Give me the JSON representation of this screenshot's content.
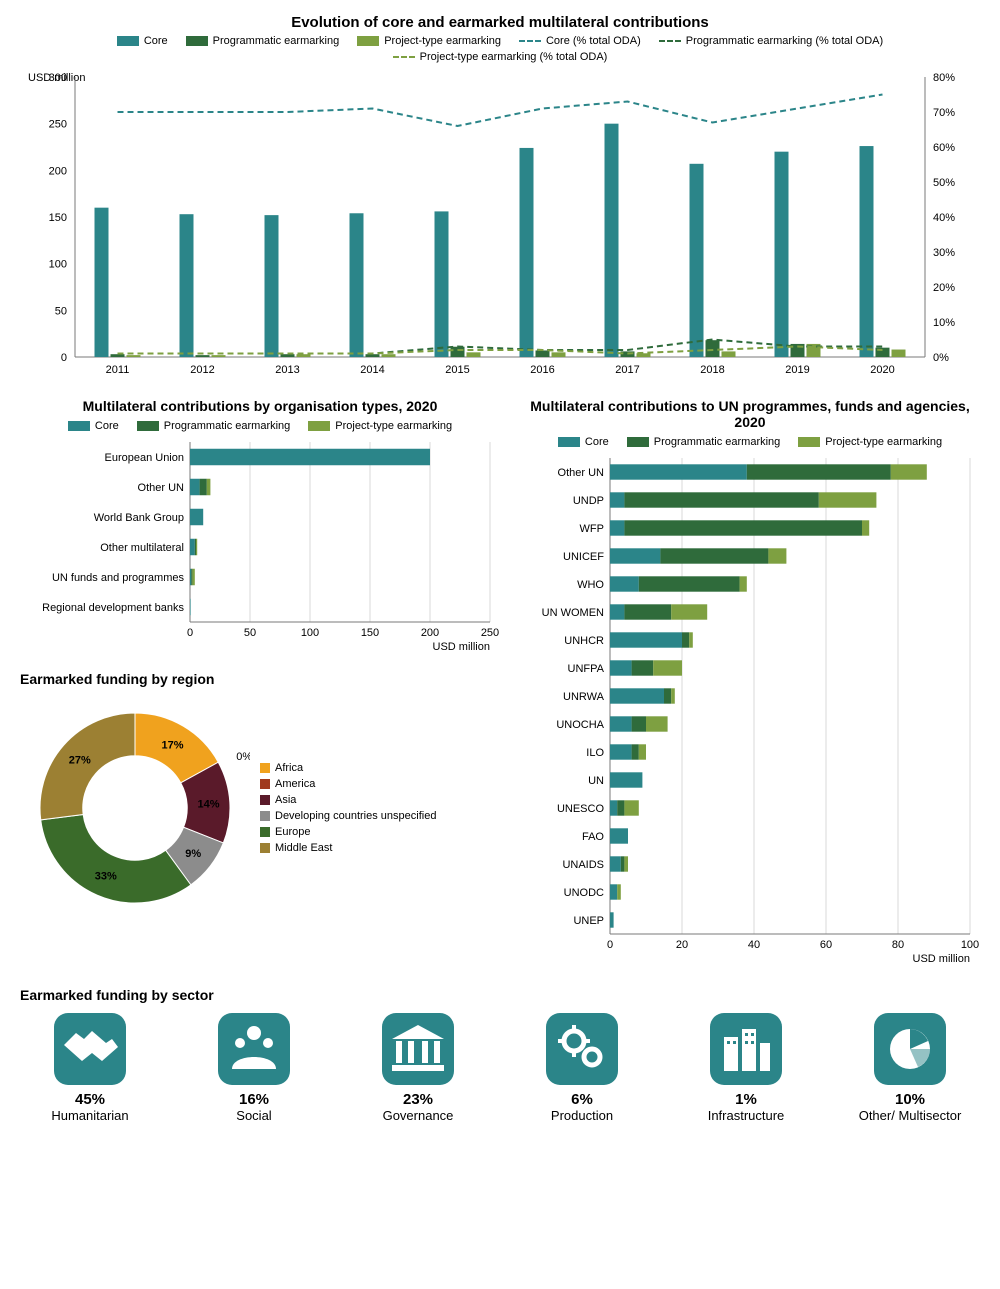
{
  "colors": {
    "core": "#2b8589",
    "prog": "#2f6b3b",
    "proj": "#7ea041",
    "core_line": "#2b8589",
    "prog_line": "#2f6b3b",
    "proj_line": "#7ea041",
    "grid": "#bfbfbf",
    "axis": "#7a7a7a",
    "text": "#000000",
    "sector_bg": "#2b8589",
    "sector_fg": "#ffffff"
  },
  "chart1": {
    "title": "Evolution of core and earmarked multilateral contributions",
    "y1_label": "USD million",
    "y1_max": 300,
    "y1_step": 50,
    "y2_max": 80,
    "y2_step": 10,
    "y2_suffix": "%",
    "years": [
      "2011",
      "2012",
      "2013",
      "2014",
      "2015",
      "2016",
      "2017",
      "2018",
      "2019",
      "2020"
    ],
    "legend": [
      {
        "label": "Core",
        "type": "bar",
        "color": "#2b8589"
      },
      {
        "label": "Programmatic earmarking",
        "type": "bar",
        "color": "#2f6b3b"
      },
      {
        "label": "Project-type earmarking",
        "type": "bar",
        "color": "#7ea041"
      },
      {
        "label": "Core (% total ODA)",
        "type": "line",
        "color": "#2b8589"
      },
      {
        "label": "Programmatic earmarking (% total ODA)",
        "type": "line",
        "color": "#2f6b3b"
      },
      {
        "label": "Project-type earmarking (% total ODA)",
        "type": "line",
        "color": "#7ea041"
      }
    ],
    "bars": {
      "core": [
        160,
        153,
        152,
        154,
        156,
        224,
        250,
        207,
        220,
        226
      ],
      "prog": [
        3,
        2,
        3,
        3,
        11,
        7,
        6,
        18,
        14,
        10
      ],
      "proj": [
        2,
        2,
        3,
        3,
        5,
        5,
        4,
        6,
        14,
        8
      ]
    },
    "lines": {
      "core": [
        70,
        70,
        70,
        71,
        66,
        71,
        73,
        67,
        71,
        75
      ],
      "prog": [
        1,
        1,
        1,
        1,
        3,
        2,
        2,
        5,
        3,
        3
      ],
      "proj": [
        1,
        1,
        1,
        1,
        2,
        2,
        1,
        2,
        3,
        2
      ]
    }
  },
  "chart2": {
    "title": "Multilateral contributions by organisation types, 2020",
    "x_label": "USD million",
    "x_max": 250,
    "x_step": 50,
    "legend": [
      {
        "label": "Core",
        "color": "#2b8589"
      },
      {
        "label": "Programmatic earmarking",
        "color": "#2f6b3b"
      },
      {
        "label": "Project-type earmarking",
        "color": "#7ea041"
      }
    ],
    "rows": [
      {
        "label": "European Union",
        "core": 200,
        "prog": 0,
        "proj": 0
      },
      {
        "label": "Other UN",
        "core": 8,
        "prog": 6,
        "proj": 3
      },
      {
        "label": "World Bank Group",
        "core": 11,
        "prog": 0,
        "proj": 0
      },
      {
        "label": "Other multilateral",
        "core": 4,
        "prog": 1,
        "proj": 1
      },
      {
        "label": "UN funds and programmes",
        "core": 1,
        "prog": 1,
        "proj": 2
      },
      {
        "label": "Regional development banks",
        "core": 0.5,
        "prog": 0,
        "proj": 0
      }
    ]
  },
  "chart3": {
    "title": "Multilateral contributions to UN programmes, funds and agencies, 2020",
    "x_label": "USD million",
    "x_max": 100,
    "x_step": 20,
    "legend": [
      {
        "label": "Core",
        "color": "#2b8589"
      },
      {
        "label": "Programmatic earmarking",
        "color": "#2f6b3b"
      },
      {
        "label": "Project-type earmarking",
        "color": "#7ea041"
      }
    ],
    "rows": [
      {
        "label": "Other UN",
        "core": 38,
        "prog": 40,
        "proj": 10
      },
      {
        "label": "UNDP",
        "core": 4,
        "prog": 54,
        "proj": 16
      },
      {
        "label": "WFP",
        "core": 4,
        "prog": 66,
        "proj": 2
      },
      {
        "label": "UNICEF",
        "core": 14,
        "prog": 30,
        "proj": 5
      },
      {
        "label": "WHO",
        "core": 8,
        "prog": 28,
        "proj": 2
      },
      {
        "label": "UN WOMEN",
        "core": 4,
        "prog": 13,
        "proj": 10
      },
      {
        "label": "UNHCR",
        "core": 20,
        "prog": 2,
        "proj": 1
      },
      {
        "label": "UNFPA",
        "core": 6,
        "prog": 6,
        "proj": 8
      },
      {
        "label": "UNRWA",
        "core": 15,
        "prog": 2,
        "proj": 1
      },
      {
        "label": "UNOCHA",
        "core": 6,
        "prog": 4,
        "proj": 6
      },
      {
        "label": "ILO",
        "core": 6,
        "prog": 2,
        "proj": 2
      },
      {
        "label": "UN",
        "core": 9,
        "prog": 0,
        "proj": 0
      },
      {
        "label": "UNESCO",
        "core": 2,
        "prog": 2,
        "proj": 4
      },
      {
        "label": "FAO",
        "core": 5,
        "prog": 0,
        "proj": 0
      },
      {
        "label": "UNAIDS",
        "core": 3,
        "prog": 1,
        "proj": 1
      },
      {
        "label": "UNODC",
        "core": 2,
        "prog": 0,
        "proj": 1
      },
      {
        "label": "UNEP",
        "core": 1,
        "prog": 0,
        "proj": 0
      }
    ]
  },
  "pie": {
    "title": "Earmarked funding by region",
    "inner": 0.55,
    "slices": [
      {
        "label": "Africa",
        "pct": 17,
        "color": "#f0a21e",
        "show": true
      },
      {
        "label": "America",
        "pct": 0,
        "color": "#a03a1e",
        "show": true
      },
      {
        "label": "Asia",
        "pct": 14,
        "color": "#5a1a2a",
        "show": true
      },
      {
        "label": "Developing countries unspecified",
        "pct": 9,
        "color": "#8c8c8c",
        "show": true
      },
      {
        "label": "Europe",
        "pct": 33,
        "color": "#3a6b2a",
        "show": true
      },
      {
        "label": "Middle East",
        "pct": 27,
        "color": "#9c8033",
        "show": true
      }
    ]
  },
  "sectors": {
    "title": "Earmarked funding by sector",
    "items": [
      {
        "pct": "45%",
        "label": "Humanitarian",
        "icon": "handshake"
      },
      {
        "pct": "16%",
        "label": "Social",
        "icon": "family"
      },
      {
        "pct": "23%",
        "label": "Governance",
        "icon": "bank"
      },
      {
        "pct": "6%",
        "label": "Production",
        "icon": "gears"
      },
      {
        "pct": "1%",
        "label": "Infrastructure",
        "icon": "city"
      },
      {
        "pct": "10%",
        "label": "Other/\nMultisector",
        "icon": "pie"
      }
    ]
  }
}
